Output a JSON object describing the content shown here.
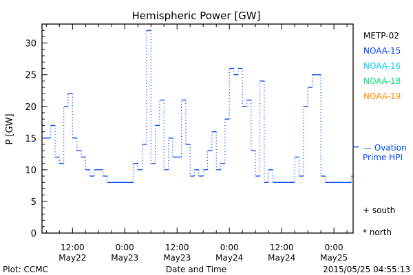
{
  "chart_data": {
    "type": "line",
    "style": "step",
    "title": "Hemispheric Power [GW]",
    "xlabel": "Date and Time",
    "ylabel": "P [GW]",
    "ylim": [
      0,
      33
    ],
    "yticks": [
      0,
      5,
      10,
      15,
      20,
      25,
      30
    ],
    "x_unit": "hours since 2015-05-22 00:00",
    "xlim": [
      5,
      76.4
    ],
    "xticks": [
      {
        "hour": 12,
        "time": "12:00",
        "date": "May22"
      },
      {
        "hour": 24,
        "time": "0:00",
        "date": "May23"
      },
      {
        "hour": 36,
        "time": "12:00",
        "date": "May23"
      },
      {
        "hour": 48,
        "time": "0:00",
        "date": "May24"
      },
      {
        "hour": 60,
        "time": "12:00",
        "date": "May24"
      },
      {
        "hour": 72,
        "time": "0:00",
        "date": "May25"
      }
    ],
    "series": [
      {
        "name": "NOAA-15",
        "color": "#0044ff",
        "start_hour": 5,
        "step_hours": 1,
        "values": [
          15,
          15,
          17,
          12,
          11,
          20,
          22,
          15,
          13,
          12,
          10,
          9,
          10,
          10,
          9,
          8,
          8,
          8,
          8,
          8,
          8,
          11,
          10,
          14,
          32,
          11,
          17,
          21,
          10,
          15,
          12,
          12,
          21,
          14,
          9,
          10,
          9,
          10,
          13,
          16,
          10,
          11,
          18,
          26,
          25,
          26,
          20,
          21,
          13,
          9,
          24,
          8,
          10,
          8,
          8,
          8,
          8,
          8,
          12,
          9,
          20,
          23,
          25,
          25,
          9,
          8,
          8,
          8,
          8,
          8,
          8,
          9
        ]
      }
    ],
    "ovation_prime_hpi": 13.6
  },
  "legend": {
    "satellites": [
      {
        "label": "METP-02",
        "color": "#000000"
      },
      {
        "label": "NOAA-15",
        "color": "#0044ff"
      },
      {
        "label": "NOAA-16",
        "color": "#00c8ff"
      },
      {
        "label": "NOAA-18",
        "color": "#00e070"
      },
      {
        "label": "NOAA-19",
        "color": "#ff8c00"
      }
    ],
    "ovation_line1": "— Ovation",
    "ovation_line2": "Prime HPI",
    "ovation_color": "#0044ff",
    "south": "+ south",
    "north": "* north"
  },
  "footer": {
    "credit": "Plot: CCMC",
    "timestamp": "2015/05/25 04:55:13"
  }
}
